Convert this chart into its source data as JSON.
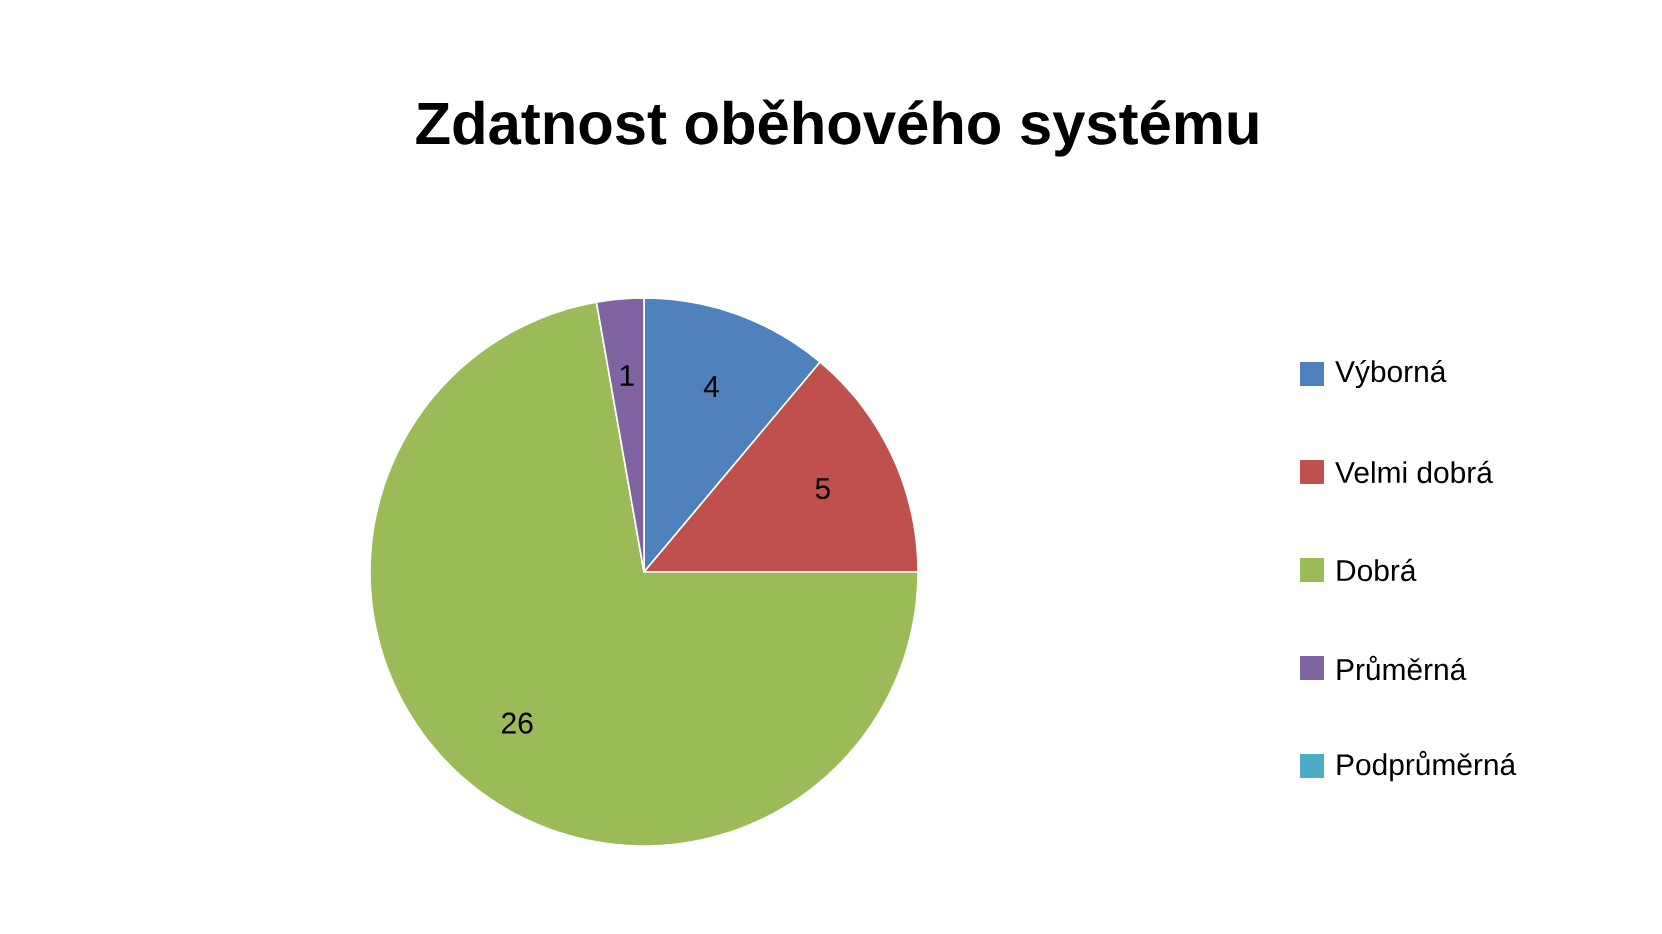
{
  "chart_data": {
    "type": "pie",
    "title": "Zdatnost oběhového systému",
    "categories": [
      "Výborná",
      "Velmi dobrá",
      "Dobrá",
      "Průměrná",
      "Podprůměrná"
    ],
    "values": [
      4,
      5,
      26,
      1,
      0
    ],
    "colors": [
      "#4f81bd",
      "#c0504d",
      "#9bbb59",
      "#8064a2",
      "#4bacc6"
    ],
    "value_labels": [
      "4",
      "5",
      "26",
      "1",
      null
    ],
    "legend": "right"
  }
}
